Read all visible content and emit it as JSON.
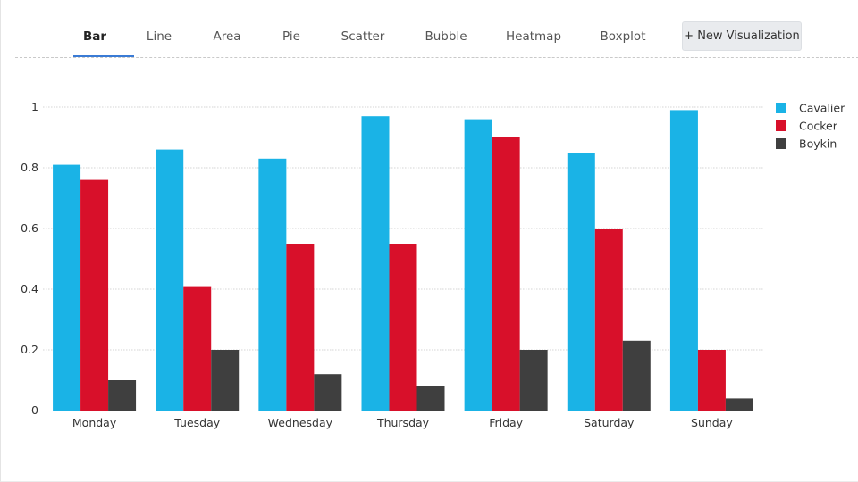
{
  "tabs": [
    {
      "label": "Bar",
      "active": true
    },
    {
      "label": "Line",
      "active": false
    },
    {
      "label": "Area",
      "active": false
    },
    {
      "label": "Pie",
      "active": false
    },
    {
      "label": "Scatter",
      "active": false
    },
    {
      "label": "Bubble",
      "active": false
    },
    {
      "label": "Heatmap",
      "active": false
    },
    {
      "label": "Boxplot",
      "active": false
    }
  ],
  "new_visualization_label": "+ New Visualization",
  "chart_data": {
    "type": "bar",
    "title": "",
    "xlabel": "",
    "ylabel": "",
    "categories": [
      "Monday",
      "Tuesday",
      "Wednesday",
      "Thursday",
      "Friday",
      "Saturday",
      "Sunday"
    ],
    "series": [
      {
        "name": "Cavalier",
        "color": "#1ab3e6",
        "values": [
          0.81,
          0.86,
          0.83,
          0.97,
          0.96,
          0.85,
          0.99
        ]
      },
      {
        "name": "Cocker",
        "color": "#d8102a",
        "values": [
          0.76,
          0.41,
          0.55,
          0.55,
          0.9,
          0.6,
          0.2
        ]
      },
      {
        "name": "Boykin",
        "color": "#3f3f3f",
        "values": [
          0.1,
          0.2,
          0.12,
          0.08,
          0.2,
          0.23,
          0.04
        ]
      }
    ],
    "ylim": [
      0,
      1
    ],
    "yticks": [
      0,
      0.2,
      0.4,
      0.6,
      0.8,
      1
    ],
    "ytick_labels": [
      "0",
      "0.2",
      "0.4",
      "0.6",
      "0.8",
      "1"
    ],
    "grid": true,
    "legend_position": "top-right"
  }
}
